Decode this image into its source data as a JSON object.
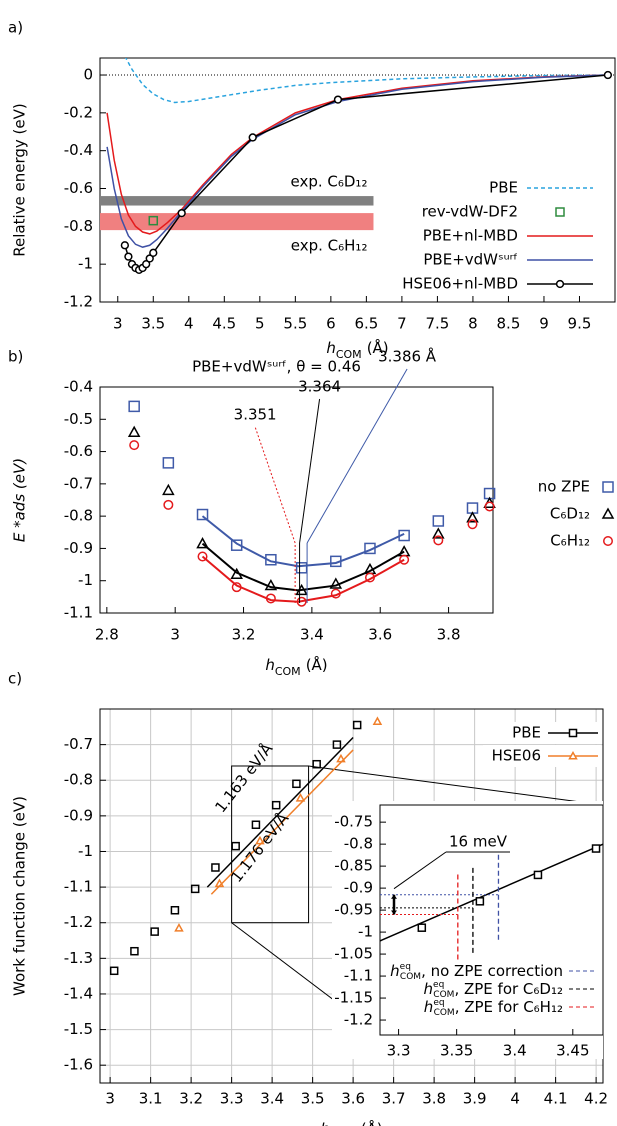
{
  "chart_data": [
    {
      "type": "line",
      "panel_label": "a)",
      "y_label": "Relative energy (eV)",
      "x_label": {
        "symbol": "h",
        "subscript": "COM",
        "unit": "(Å)"
      },
      "xlim": [
        2.75,
        10
      ],
      "ylim": [
        -1.2,
        0.09
      ],
      "xticks": [
        3,
        3.5,
        4,
        4.5,
        5,
        5.5,
        6,
        6.5,
        7,
        7.5,
        8,
        8.5,
        9,
        9.5
      ],
      "yticks": [
        0,
        -0.2,
        -0.4,
        -0.6,
        -0.8,
        -1,
        -1.2
      ],
      "grid": false,
      "zero_line": true,
      "legend": "lower right",
      "bands": [
        {
          "label": "exp. C₆D₁₂",
          "range": [
            -0.69,
            -0.64
          ],
          "xmax": 6.6,
          "color": "#808080",
          "label_color": "#222222"
        },
        {
          "label": "exp. C₆H₁₂",
          "range": [
            -0.82,
            -0.73
          ],
          "xmax": 6.6,
          "color": "#f08080",
          "label_color": "#e41a1c"
        }
      ],
      "series": [
        {
          "name": "PBE",
          "color": "#29a3de",
          "style": "dashed",
          "marker": null,
          "x": [
            3.1,
            3.2,
            3.35,
            3.5,
            3.65,
            3.8,
            4.0,
            4.5,
            5,
            5.5,
            6,
            7,
            8,
            9,
            9.9
          ],
          "values": [
            0.1,
            0.03,
            -0.05,
            -0.1,
            -0.13,
            -0.145,
            -0.14,
            -0.11,
            -0.08,
            -0.055,
            -0.04,
            -0.02,
            -0.01,
            -0.003,
            0
          ]
        },
        {
          "name": "rev-vdW-DF2",
          "color": "#2e8b3e",
          "style": "none",
          "marker": "square",
          "x": [
            3.5
          ],
          "values": [
            -0.77
          ]
        },
        {
          "name": "PBE+nl-MBD",
          "color": "#e41a1c",
          "style": "solid",
          "marker": null,
          "x": [
            2.85,
            2.95,
            3.05,
            3.15,
            3.25,
            3.35,
            3.45,
            3.55,
            3.7,
            3.9,
            4.2,
            4.6,
            4.9,
            5.5,
            6.1,
            7,
            8,
            9,
            9.9
          ],
          "values": [
            -0.2,
            -0.45,
            -0.63,
            -0.74,
            -0.8,
            -0.83,
            -0.84,
            -0.825,
            -0.78,
            -0.71,
            -0.58,
            -0.42,
            -0.33,
            -0.2,
            -0.13,
            -0.07,
            -0.03,
            -0.01,
            0
          ]
        },
        {
          "name": "PBE+vdWˢᵘʳᶠ",
          "color": "#3f51a5",
          "style": "solid",
          "marker": null,
          "x": [
            2.85,
            2.95,
            3.05,
            3.15,
            3.25,
            3.35,
            3.45,
            3.55,
            3.7,
            3.9,
            4.2,
            4.6,
            4.9,
            5.5,
            6.1,
            7,
            8,
            9,
            9.9
          ],
          "values": [
            -0.38,
            -0.6,
            -0.76,
            -0.85,
            -0.895,
            -0.91,
            -0.9,
            -0.87,
            -0.81,
            -0.72,
            -0.59,
            -0.43,
            -0.34,
            -0.21,
            -0.14,
            -0.075,
            -0.035,
            -0.012,
            0
          ]
        },
        {
          "name": "HSE06+nl-MBD",
          "color": "#000000",
          "style": "solid",
          "marker": "circle",
          "x": [
            3.1,
            3.15,
            3.2,
            3.25,
            3.3,
            3.35,
            3.4,
            3.45,
            3.5,
            3.9,
            4.9,
            6.1,
            9.9
          ],
          "values": [
            -0.9,
            -0.96,
            -1.0,
            -1.02,
            -1.03,
            -1.02,
            -1.0,
            -0.97,
            -0.94,
            -0.73,
            -0.33,
            -0.13,
            0
          ]
        }
      ]
    },
    {
      "type": "scatter",
      "panel_label": "b)",
      "title": "PBE+vdWˢᵘʳᶠ,  θ = 0.46",
      "y_label": "E *ads (eV)",
      "x_label": {
        "symbol": "h",
        "subscript": "COM",
        "unit": "(Å)"
      },
      "xlim": [
        2.78,
        3.93
      ],
      "ylim": [
        -1.1,
        -0.4
      ],
      "xticks": [
        2.8,
        3,
        3.2,
        3.4,
        3.6,
        3.8
      ],
      "yticks": [
        -0.4,
        -0.5,
        -0.6,
        -0.7,
        -0.8,
        -0.9,
        -1,
        -1.1
      ],
      "grid": false,
      "legend": "outside right",
      "x": [
        2.88,
        2.98,
        3.08,
        3.18,
        3.28,
        3.37,
        3.47,
        3.57,
        3.67,
        3.77,
        3.87,
        3.92
      ],
      "series": [
        {
          "name": "no ZPE",
          "color": "#3f5aa8",
          "marker": "square",
          "values": [
            -0.46,
            -0.635,
            -0.795,
            -0.89,
            -0.935,
            -0.96,
            -0.94,
            -0.9,
            -0.86,
            -0.815,
            -0.775,
            -0.73
          ]
        },
        {
          "name": "C₆D₁₂",
          "color": "#000000",
          "marker": "triangle",
          "values": [
            -0.54,
            -0.72,
            -0.885,
            -0.98,
            -1.015,
            -1.03,
            -1.01,
            -0.965,
            -0.91,
            -0.855,
            -0.805,
            -0.76
          ]
        },
        {
          "name": "C₆H₁₂",
          "color": "#e41a1c",
          "marker": "circle",
          "values": [
            -0.58,
            -0.765,
            -0.925,
            -1.02,
            -1.055,
            -1.065,
            -1.04,
            -0.99,
            -0.935,
            -0.875,
            -0.825,
            -0.77
          ]
        }
      ],
      "fits": [
        {
          "color": "#3f5aa8",
          "x": [
            3.08,
            3.18,
            3.28,
            3.36,
            3.47,
            3.57,
            3.67
          ],
          "values": [
            -0.8,
            -0.885,
            -0.94,
            -0.955,
            -0.945,
            -0.905,
            -0.855
          ]
        },
        {
          "color": "#000000",
          "x": [
            3.08,
            3.18,
            3.28,
            3.36,
            3.47,
            3.57,
            3.67
          ],
          "values": [
            -0.885,
            -0.975,
            -1.02,
            -1.03,
            -1.015,
            -0.97,
            -0.91
          ]
        },
        {
          "color": "#e41a1c",
          "x": [
            3.08,
            3.18,
            3.28,
            3.36,
            3.47,
            3.57,
            3.67
          ],
          "values": [
            -0.925,
            -1.015,
            -1.06,
            -1.065,
            -1.045,
            -0.995,
            -0.935
          ]
        }
      ],
      "annotations": [
        {
          "text": "3.351",
          "x": 3.351,
          "color": "#e41a1c"
        },
        {
          "text": "3.364",
          "x": 3.364,
          "color": "#000000"
        },
        {
          "text": "3.386 Å",
          "x": 3.386,
          "color": "#3f5aa8"
        }
      ]
    },
    {
      "type": "scatter",
      "panel_label": "c)",
      "y_label": "Work function change (eV)",
      "x_label": {
        "symbol": "h",
        "subscript": "COM",
        "unit": "(Å)"
      },
      "xlim": [
        2.975,
        4.217
      ],
      "ylim": [
        -1.65,
        -0.6
      ],
      "xticks": [
        3,
        3.1,
        3.2,
        3.3,
        3.4,
        3.5,
        3.6,
        3.7,
        3.8,
        3.9,
        4,
        4.1,
        4.2
      ],
      "yticks": [
        -0.7,
        -0.8,
        -0.9,
        -1,
        -1.1,
        -1.2,
        -1.3,
        -1.4,
        -1.5,
        -1.6
      ],
      "grid": true,
      "legend": "upper right",
      "series": [
        {
          "name": "PBE",
          "color": "#000000",
          "marker": "square",
          "x": [
            3.01,
            3.06,
            3.11,
            3.16,
            3.21,
            3.26,
            3.31,
            3.36,
            3.41,
            3.46,
            3.51,
            3.56,
            3.61
          ],
          "values": [
            -1.335,
            -1.28,
            -1.225,
            -1.165,
            -1.105,
            -1.045,
            -0.985,
            -0.925,
            -0.87,
            -0.81,
            -0.755,
            -0.7,
            -0.645
          ]
        },
        {
          "name": "HSE06",
          "color": "#f07f2a",
          "marker": "triangle",
          "x": [
            3.17,
            3.27,
            3.37,
            3.47,
            3.57,
            3.66
          ],
          "values": [
            -1.215,
            -1.09,
            -0.97,
            -0.85,
            -0.74,
            -0.635
          ]
        }
      ],
      "fits": [
        {
          "label": "1.163 eV/Å",
          "color": "#000000",
          "x": [
            3.24,
            3.6
          ],
          "values": [
            -1.1,
            -0.68
          ]
        },
        {
          "label": "1.176 eV/Å",
          "color": "#f07f2a",
          "x": [
            3.25,
            3.6
          ],
          "values": [
            -1.12,
            -0.715
          ]
        }
      ],
      "zoom": {
        "xlim": [
          3.3,
          3.49
        ],
        "ylim": [
          -1.2,
          -0.76
        ]
      },
      "inset": {
        "xlim": [
          3.284,
          3.476
        ],
        "ylim": [
          -1.234,
          -0.711
        ],
        "xticks": [
          3.3,
          3.35,
          3.4,
          3.45
        ],
        "yticks": [
          -0.75,
          -0.8,
          -0.85,
          -0.9,
          -0.95,
          -1,
          -1.05,
          -1.1,
          -1.15,
          -1.2
        ],
        "grid": false,
        "series": [
          {
            "color": "#000000",
            "marker": "square",
            "x": [
              3.32,
              3.37,
              3.42,
              3.47
            ],
            "values": [
              -0.99,
              -0.93,
              -0.87,
              -0.81
            ]
          }
        ],
        "fit": {
          "color": "#000000",
          "x": [
            3.284,
            3.476
          ],
          "values": [
            -1.02,
            -0.8
          ]
        },
        "eq_lines": [
          {
            "symbol": "h",
            "sup": "eq",
            "sub": "COM",
            "text": ", no ZPE correction",
            "x": 3.386,
            "y": -0.915,
            "color": "#3f51a5"
          },
          {
            "symbol": "h",
            "sup": "eq",
            "sub": "COM",
            "text": ", ZPE for C₆D₁₂",
            "x": 3.364,
            "y": -0.945,
            "color": "#000000"
          },
          {
            "symbol": "h",
            "sup": "eq",
            "sub": "COM",
            "text": ", ZPE for C₆H₁₂",
            "x": 3.351,
            "y": -0.96,
            "color": "#e41a1c"
          }
        ],
        "error_label": "16 meV"
      }
    }
  ]
}
